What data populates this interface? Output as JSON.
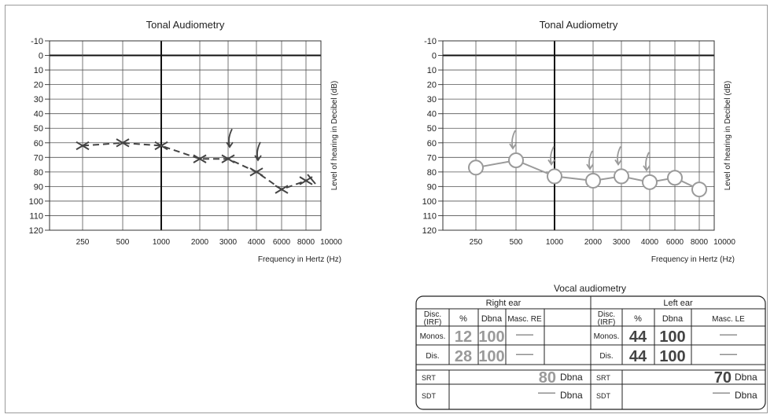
{
  "chart_data": [
    {
      "type": "line",
      "title": "Tonal Audiometry",
      "xlabel": "Frequency in  Hertz (Hz)",
      "ylabel": "Level of hearing in Decibel (dB)",
      "x_tick_labels": [
        "250",
        "500",
        "1000",
        "2000",
        "3000",
        "4000",
        "6000",
        "8000",
        "10000"
      ],
      "y_tick_labels": [
        "-10",
        "0",
        "10",
        "20",
        "30",
        "40",
        "50",
        "60",
        "70",
        "80",
        "90",
        "100",
        "110",
        "120"
      ],
      "ylim": [
        -10,
        120
      ],
      "y_inverted": true,
      "grid": true,
      "series": [
        {
          "marker": "x",
          "line_style": "dashed",
          "color": "#444444",
          "x": [
            250,
            500,
            1000,
            2000,
            3000,
            4000,
            6000,
            8000
          ],
          "values": [
            62,
            60,
            62,
            71,
            71,
            80,
            92,
            86
          ]
        }
      ],
      "arrows_at": [
        3000,
        4000
      ],
      "right_arrow_at": 8000
    },
    {
      "type": "line",
      "title": "Tonal Audiometry",
      "xlabel": "Frequency in  Hertz (Hz)",
      "ylabel": "Level of hearing in Decibel (dB)",
      "x_tick_labels": [
        "250",
        "500",
        "1000",
        "2000",
        "3000",
        "4000",
        "6000",
        "8000",
        "10000"
      ],
      "y_tick_labels": [
        "-10",
        "0",
        "10",
        "20",
        "30",
        "40",
        "50",
        "60",
        "70",
        "80",
        "90",
        "100",
        "110",
        "120"
      ],
      "ylim": [
        -10,
        120
      ],
      "y_inverted": true,
      "grid": true,
      "series": [
        {
          "marker": "o",
          "line_style": "solid",
          "color": "#9a9a9a",
          "x": [
            250,
            500,
            1000,
            2000,
            3000,
            4000,
            6000,
            8000
          ],
          "values": [
            77,
            72,
            83,
            86,
            83,
            87,
            84,
            92
          ]
        }
      ],
      "arrows_at": [
        500,
        1000,
        2000,
        3000,
        4000
      ]
    }
  ],
  "vocal": {
    "title": "Vocal audiometry",
    "right_ear": "Right ear",
    "left_ear": "Left ear",
    "disc_irf": "Disc.\n(IRF)",
    "pct": "%",
    "dbna": "Dbna",
    "masc_re": "Masc. RE",
    "masc_le": "Masc. LE",
    "monos": "Monos.",
    "dis": "Dis.",
    "srt": "SRT",
    "sdt": "SDT",
    "dash": "——",
    "right": {
      "monos_pct": "12",
      "monos_dbna": "100",
      "dis_pct": "28",
      "dis_dbna": "100",
      "srt_value": "80",
      "srt_unit": "Dbna",
      "sdt_unit": "Dbna"
    },
    "left": {
      "monos_pct": "44",
      "monos_dbna": "100",
      "dis_pct": "44",
      "dis_dbna": "100",
      "srt_value": "70",
      "srt_unit": "Dbna",
      "sdt_unit": "Dbna"
    },
    "colors": {
      "right_value": "#9a9a9a",
      "left_value": "#444444"
    }
  }
}
